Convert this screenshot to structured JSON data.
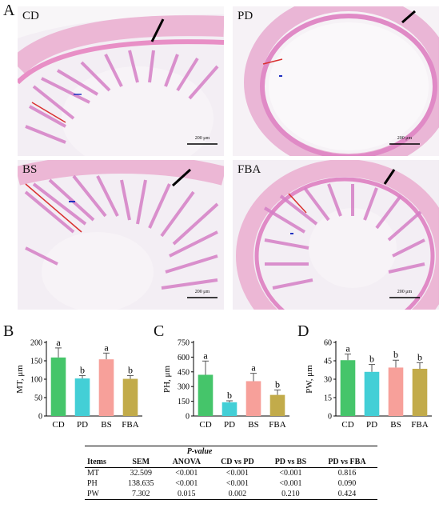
{
  "figure": {
    "panel_A": "A",
    "panel_B": "B",
    "panel_C": "C",
    "panel_D": "D"
  },
  "micrographs": [
    {
      "label": "CD",
      "scale": "200 μm"
    },
    {
      "label": "PD",
      "scale": "200 μm"
    },
    {
      "label": "BS",
      "scale": "200 μm"
    },
    {
      "label": "FBA",
      "scale": "200 μm"
    }
  ],
  "chart_data": [
    {
      "type": "bar",
      "ylabel": "MT, μm",
      "ylim": [
        0,
        200
      ],
      "yticks": [
        0,
        50,
        100,
        150,
        200
      ],
      "categories": [
        "CD",
        "PD",
        "BS",
        "FBA"
      ],
      "values": [
        159,
        102,
        154,
        101
      ],
      "errors": [
        26,
        8,
        17,
        9
      ],
      "letters": [
        "a",
        "b",
        "a",
        "b"
      ],
      "colors": [
        "#45c56a",
        "#43cfd6",
        "#f7a09a",
        "#c2ab4a"
      ]
    },
    {
      "type": "bar",
      "ylabel": "PH, μm",
      "ylim": [
        0,
        750
      ],
      "yticks": [
        0,
        150,
        300,
        450,
        600,
        750
      ],
      "categories": [
        "CD",
        "PD",
        "BS",
        "FBA"
      ],
      "values": [
        420,
        140,
        355,
        215
      ],
      "errors": [
        140,
        15,
        80,
        50
      ],
      "letters": [
        "a",
        "b",
        "a",
        "b"
      ],
      "colors": [
        "#45c56a",
        "#43cfd6",
        "#f7a09a",
        "#c2ab4a"
      ]
    },
    {
      "type": "bar",
      "ylabel": "PW, μm",
      "ylim": [
        0,
        60
      ],
      "yticks": [
        0,
        15,
        30,
        45,
        60
      ],
      "categories": [
        "CD",
        "PD",
        "BS",
        "FBA"
      ],
      "values": [
        45.5,
        36,
        39.5,
        38.5
      ],
      "errors": [
        5,
        6,
        6,
        5
      ],
      "letters": [
        "a",
        "b",
        "b",
        "b"
      ],
      "colors": [
        "#45c56a",
        "#43cfd6",
        "#f7a09a",
        "#c2ab4a"
      ]
    }
  ],
  "table": {
    "pvalue_header": "P-value",
    "headers": [
      "Items",
      "SEM",
      "ANOVA",
      "CD vs PD",
      "PD vs BS",
      "PD vs FBA"
    ],
    "rows": [
      [
        "MT",
        "32.509",
        "<0.001",
        "<0.001",
        "<0.001",
        "0.816"
      ],
      [
        "PH",
        "138.635",
        "<0.001",
        "<0.001",
        "<0.001",
        "0.090"
      ],
      [
        "PW",
        "7.302",
        "0.015",
        "0.002",
        "0.210",
        "0.424"
      ]
    ]
  }
}
